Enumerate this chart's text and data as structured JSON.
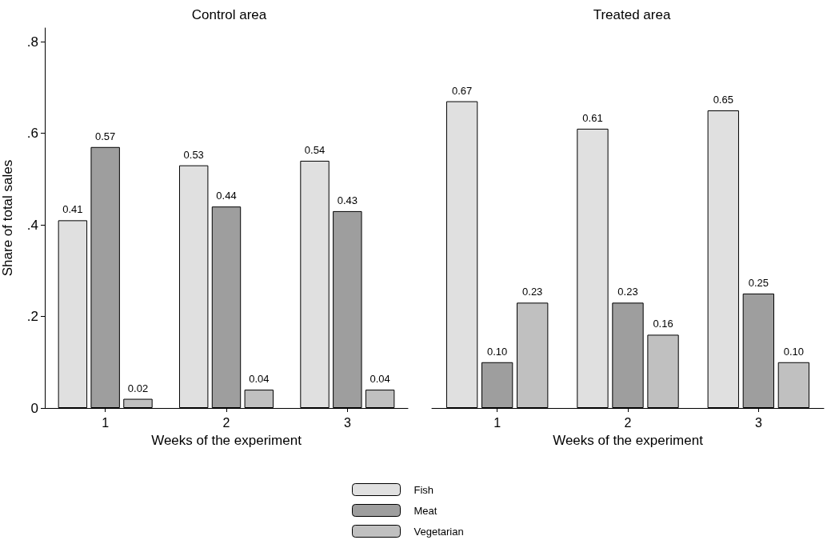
{
  "chart_data": [
    {
      "type": "bar",
      "title": "Control area",
      "xlabel": "Weeks of the experiment",
      "ylabel": "Share of total sales",
      "categories": [
        "1",
        "2",
        "3"
      ],
      "ylim": [
        0,
        0.83
      ],
      "yticks": [
        0,
        {
          "value": 0.2,
          "label": ".2"
        },
        {
          "value": 0.4,
          "label": ".4"
        },
        {
          "value": 0.6,
          "label": ".6"
        },
        {
          "value": 0.8,
          "label": ".8"
        }
      ],
      "grid": false,
      "legend": "bottom",
      "series": [
        {
          "name": "Fish",
          "color": "#e0e0e0",
          "values": [
            0.41,
            0.53,
            0.54
          ],
          "value_labels": [
            "0.41",
            "0.53",
            "0.54"
          ]
        },
        {
          "name": "Meat",
          "color": "#9e9e9e",
          "values": [
            0.57,
            0.44,
            0.43
          ],
          "value_labels": [
            "0.57",
            "0.44",
            "0.43"
          ]
        },
        {
          "name": "Vegetarian",
          "color": "#c0c0c0",
          "values": [
            0.02,
            0.04,
            0.04
          ],
          "value_labels": [
            "0.02",
            "0.04",
            "0.04"
          ]
        }
      ]
    },
    {
      "type": "bar",
      "title": "Treated area",
      "xlabel": "Weeks of the experiment",
      "categories": [
        "1",
        "2",
        "3"
      ],
      "tick_labels": "x",
      "grid": false,
      "series": [
        {
          "color": "#e0e0e0",
          "values": [
            0.67,
            0.61,
            0.65
          ],
          "value_labels": [
            "0.67",
            "0.61",
            "0.65"
          ]
        },
        {
          "color": "#9e9e9e",
          "values": [
            0.1,
            0.23,
            0.25
          ],
          "value_labels": [
            "0.10",
            "0.23",
            "0.25"
          ]
        },
        {
          "color": "#c0c0c0",
          "values": [
            0.23,
            0.16,
            0.1
          ],
          "value_labels": [
            "0.23",
            "0.16",
            "0.10"
          ]
        }
      ]
    }
  ]
}
